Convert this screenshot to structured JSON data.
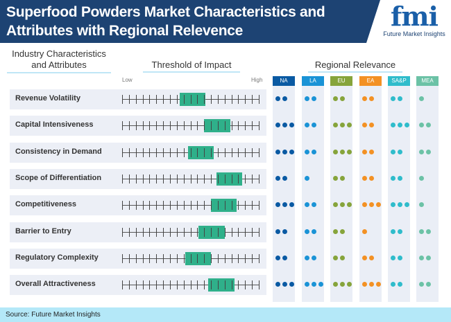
{
  "header": {
    "title_line1": "Superfood Powders Market Characteristics and",
    "title_line2": "Attributes with Regional Relevence",
    "logo_text": "fmi",
    "logo_caption": "Future Market Insights"
  },
  "sections": {
    "characteristics_line1": "Industry Characteristics",
    "characteristics_line2": "and Attributes",
    "threshold": "Threshold of Impact",
    "regional": "Regional Relevance",
    "low": "Low",
    "high": "High"
  },
  "regions": [
    {
      "label": "NA",
      "color": "#0a5aa3"
    },
    {
      "label": "LA",
      "color": "#1a93d6"
    },
    {
      "label": "EU",
      "color": "#86a43b"
    },
    {
      "label": "EA",
      "color": "#f39124"
    },
    {
      "label": "SA&P",
      "color": "#2fbccb"
    },
    {
      "label": "MEA",
      "color": "#6cc2a6"
    }
  ],
  "impact_box_color": "#2fb08a",
  "rows": [
    {
      "label": "Revenue Volatility",
      "impact_start": 0.42,
      "impact_end": 0.61,
      "dots": [
        2,
        2,
        2,
        2,
        2,
        1
      ]
    },
    {
      "label": "Capital Intensiveness",
      "impact_start": 0.6,
      "impact_end": 0.79,
      "dots": [
        3,
        2,
        3,
        2,
        3,
        2
      ]
    },
    {
      "label": "Consistency in Demand",
      "impact_start": 0.48,
      "impact_end": 0.67,
      "dots": [
        3,
        2,
        3,
        2,
        2,
        2
      ]
    },
    {
      "label": "Scope of Differentiation",
      "impact_start": 0.69,
      "impact_end": 0.88,
      "dots": [
        2,
        1,
        2,
        2,
        2,
        1
      ]
    },
    {
      "label": "Competitiveness",
      "impact_start": 0.65,
      "impact_end": 0.84,
      "dots": [
        3,
        2,
        3,
        3,
        3,
        1
      ]
    },
    {
      "label": "Barrier to Entry",
      "impact_start": 0.56,
      "impact_end": 0.75,
      "dots": [
        2,
        2,
        2,
        1,
        2,
        2
      ]
    },
    {
      "label": "Regulatory Complexity",
      "impact_start": 0.46,
      "impact_end": 0.65,
      "dots": [
        2,
        2,
        2,
        2,
        2,
        2
      ]
    },
    {
      "label": "Overall Attractiveness",
      "impact_start": 0.63,
      "impact_end": 0.82,
      "dots": [
        3,
        3,
        3,
        3,
        2,
        2
      ]
    }
  ],
  "footer": {
    "source": "Source: Future Market Insights"
  }
}
